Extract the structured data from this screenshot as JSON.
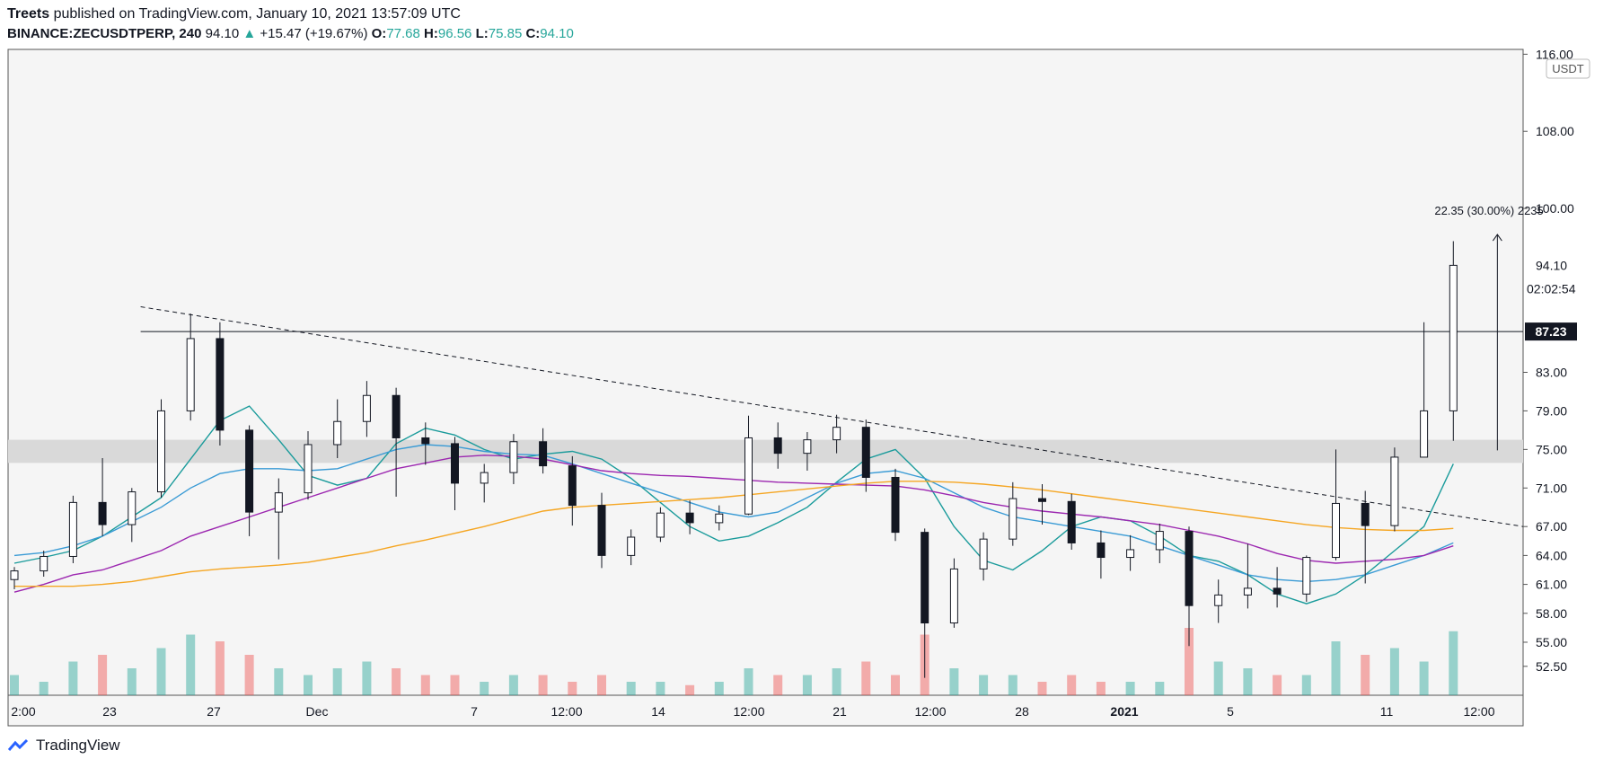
{
  "header": {
    "author": "Treets",
    "published": "published on TradingView.com, January 10, 2021 13:57:09 UTC",
    "symbol": "BINANCE:ZECUSDTPERP,",
    "interval": "240",
    "last": "94.10",
    "change_arrow": "▲",
    "change": "+15.47 (+19.67%)",
    "o_label": "O:",
    "o_value": "77.68",
    "h_label": "H:",
    "h_value": "96.56",
    "l_label": "L:",
    "l_value": "75.85",
    "c_label": "C:",
    "c_value": "94.10"
  },
  "footer": {
    "brand": "TradingView",
    "logo_icon": "tradingview-logo-icon"
  },
  "colors": {
    "up": "#26a69a",
    "down": "#ef5350",
    "candle": "#131722",
    "ma_teal": "#1a9b9b",
    "ma_blue": "#3a9bd5",
    "ma_purple": "#9c27b0",
    "ma_orange": "#f5a623",
    "zone": "#d9d9d9",
    "plot_bg": "#f5f5f5"
  },
  "chart_data": {
    "type": "candlestick",
    "title": "BINANCE:ZECUSDTPERP, 240",
    "currency": "USDT",
    "ylim": [
      49.5,
      116.5
    ],
    "y_ticks": [
      "116.00",
      "108.00",
      "100.00",
      "83.00",
      "79.00",
      "75.00",
      "71.00",
      "67.00",
      "64.00",
      "61.00",
      "58.00",
      "55.00",
      "52.50"
    ],
    "x_ticks": [
      "2:00",
      "23",
      "27",
      "Dec",
      "7",
      "12:00",
      "14",
      "12:00",
      "21",
      "12:00",
      "28",
      "2021",
      "5",
      "11",
      "12:00"
    ],
    "price_label": "94.10",
    "countdown": "02:02:54",
    "resistance_level": 87.23,
    "resistance_label": "87.23",
    "support_zone": [
      73.6,
      76.0
    ],
    "trendline": {
      "from": {
        "date": "Nov 24",
        "price": 89.8
      },
      "to": {
        "date": "Jan 11",
        "price": 67.0
      }
    },
    "measure": {
      "text": "22.35 (30.00%) 2235",
      "from": 74.9,
      "to": 97.3
    },
    "candles_ohlc_approx": [
      [
        61.5,
        62.8,
        60.5,
        62.4
      ],
      [
        62.4,
        64.5,
        61.8,
        63.9
      ],
      [
        63.9,
        70.2,
        63.2,
        69.5
      ],
      [
        69.5,
        74.1,
        66.0,
        67.2
      ],
      [
        67.2,
        71.0,
        65.4,
        70.6
      ],
      [
        70.6,
        80.2,
        70.0,
        79.0
      ],
      [
        79.0,
        89.1,
        78.0,
        86.5
      ],
      [
        86.5,
        88.2,
        75.4,
        77.0
      ],
      [
        77.0,
        77.5,
        66.0,
        68.5
      ],
      [
        68.5,
        72.0,
        63.6,
        70.5
      ],
      [
        70.5,
        76.9,
        69.8,
        75.5
      ],
      [
        75.5,
        80.2,
        74.1,
        77.9
      ],
      [
        77.9,
        82.1,
        76.3,
        80.6
      ],
      [
        80.6,
        81.4,
        70.1,
        76.2
      ],
      [
        76.2,
        77.8,
        73.4,
        75.6
      ],
      [
        75.6,
        76.3,
        68.7,
        71.5
      ],
      [
        71.5,
        73.5,
        69.5,
        72.6
      ],
      [
        72.6,
        76.6,
        71.4,
        75.8
      ],
      [
        75.8,
        77.2,
        72.5,
        73.3
      ],
      [
        73.3,
        74.3,
        67.1,
        69.2
      ],
      [
        69.2,
        70.5,
        62.7,
        64.0
      ],
      [
        64.0,
        66.7,
        63.0,
        65.9
      ],
      [
        65.9,
        69.0,
        65.4,
        68.4
      ],
      [
        68.4,
        69.7,
        66.2,
        67.4
      ],
      [
        67.4,
        69.2,
        66.6,
        68.3
      ],
      [
        68.3,
        78.5,
        68.2,
        76.2
      ],
      [
        76.2,
        77.8,
        73.0,
        74.6
      ],
      [
        74.6,
        76.8,
        72.8,
        76.0
      ],
      [
        76.0,
        78.6,
        74.6,
        77.3
      ],
      [
        77.3,
        78.1,
        70.6,
        72.1
      ],
      [
        72.1,
        73.0,
        65.5,
        66.4
      ],
      [
        66.4,
        66.8,
        51.3,
        57.0
      ],
      [
        57.0,
        63.7,
        56.5,
        62.6
      ],
      [
        62.6,
        66.4,
        61.4,
        65.7
      ],
      [
        65.7,
        71.6,
        65.0,
        69.9
      ],
      [
        69.9,
        71.4,
        67.2,
        69.6
      ],
      [
        69.6,
        70.4,
        64.6,
        65.3
      ],
      [
        65.3,
        66.6,
        61.6,
        63.8
      ],
      [
        63.8,
        66.1,
        62.4,
        64.6
      ],
      [
        64.6,
        67.3,
        63.2,
        66.5
      ],
      [
        66.5,
        67.0,
        54.6,
        58.8
      ],
      [
        58.8,
        61.5,
        57.0,
        59.9
      ],
      [
        59.9,
        65.2,
        58.5,
        60.6
      ],
      [
        60.6,
        62.8,
        58.6,
        60.0
      ],
      [
        60.0,
        64.0,
        59.2,
        63.8
      ],
      [
        63.8,
        75.0,
        63.5,
        69.4
      ],
      [
        69.4,
        70.7,
        61.1,
        67.1
      ],
      [
        67.1,
        75.2,
        66.5,
        74.2
      ],
      [
        74.2,
        88.2,
        74.2,
        79.0
      ],
      [
        79.0,
        96.6,
        75.9,
        94.1
      ]
    ],
    "series": [
      {
        "name": "MA fast (teal)",
        "color": "#1a9b9b",
        "values": [
          63.2,
          63.8,
          64.5,
          66.0,
          68.0,
          70.0,
          74.0,
          78.0,
          79.5,
          76.0,
          72.3,
          71.3,
          72.0,
          75.6,
          77.2,
          76.5,
          75.0,
          74.0,
          74.5,
          74.8,
          74.0,
          72.0,
          69.5,
          67.0,
          65.5,
          66.0,
          67.4,
          69.0,
          71.6,
          74.0,
          75.0,
          72.0,
          67.0,
          63.5,
          62.5,
          64.5,
          67.0,
          68.0,
          67.6,
          66.0,
          64.0,
          63.4,
          62.0,
          60.0,
          59.0,
          60.0,
          62.0,
          64.5,
          67.0,
          73.5
        ]
      },
      {
        "name": "MA mid (blue)",
        "color": "#3a9bd5",
        "values": [
          64.0,
          64.3,
          65.0,
          66.0,
          67.5,
          69.0,
          71.0,
          72.5,
          73.0,
          73.0,
          72.8,
          73.0,
          74.0,
          75.0,
          75.5,
          75.3,
          74.8,
          74.5,
          74.4,
          73.5,
          72.5,
          71.5,
          70.5,
          69.5,
          68.5,
          68.0,
          68.5,
          70.0,
          71.5,
          72.5,
          72.8,
          72.0,
          70.5,
          69.0,
          68.0,
          67.5,
          67.0,
          66.5,
          66.0,
          65.0,
          64.0,
          63.0,
          62.0,
          61.5,
          61.3,
          61.5,
          62.0,
          63.0,
          64.0,
          65.3
        ]
      },
      {
        "name": "MA slow (purple)",
        "color": "#9c27b0",
        "values": [
          60.2,
          61.0,
          62.0,
          62.5,
          63.5,
          64.5,
          66.0,
          67.0,
          68.0,
          69.0,
          70.0,
          71.0,
          72.0,
          73.0,
          73.6,
          74.2,
          74.4,
          74.3,
          74.0,
          73.4,
          72.8,
          72.5,
          72.3,
          72.2,
          72.0,
          71.8,
          71.6,
          71.5,
          71.4,
          71.3,
          71.2,
          70.8,
          70.2,
          69.5,
          69.0,
          68.6,
          68.3,
          68.0,
          67.6,
          67.2,
          66.6,
          66.0,
          65.2,
          64.2,
          63.5,
          63.2,
          63.4,
          63.6,
          64.0,
          65.0
        ]
      },
      {
        "name": "MA 200 (orange)",
        "color": "#f5a623",
        "values": [
          60.8,
          60.8,
          60.8,
          61.0,
          61.3,
          61.8,
          62.3,
          62.6,
          62.8,
          63.0,
          63.3,
          63.8,
          64.3,
          65.0,
          65.6,
          66.3,
          67.0,
          67.8,
          68.6,
          69.0,
          69.2,
          69.4,
          69.6,
          69.8,
          70.0,
          70.3,
          70.6,
          70.9,
          71.2,
          71.5,
          71.7,
          71.7,
          71.6,
          71.4,
          71.1,
          70.8,
          70.4,
          70.0,
          69.6,
          69.2,
          68.8,
          68.4,
          68.0,
          67.6,
          67.2,
          66.9,
          66.7,
          66.6,
          66.6,
          66.8
        ]
      }
    ],
    "volume_relative": [
      0.3,
      0.2,
      0.5,
      0.6,
      0.4,
      0.7,
      0.9,
      0.8,
      0.6,
      0.4,
      0.3,
      0.4,
      0.5,
      0.4,
      0.3,
      0.3,
      0.2,
      0.3,
      0.3,
      0.2,
      0.3,
      0.2,
      0.2,
      0.15,
      0.2,
      0.4,
      0.3,
      0.3,
      0.4,
      0.5,
      0.3,
      0.9,
      0.4,
      0.3,
      0.3,
      0.2,
      0.3,
      0.2,
      0.2,
      0.2,
      1.0,
      0.5,
      0.4,
      0.3,
      0.3,
      0.8,
      0.6,
      0.7,
      0.5,
      0.95
    ]
  }
}
